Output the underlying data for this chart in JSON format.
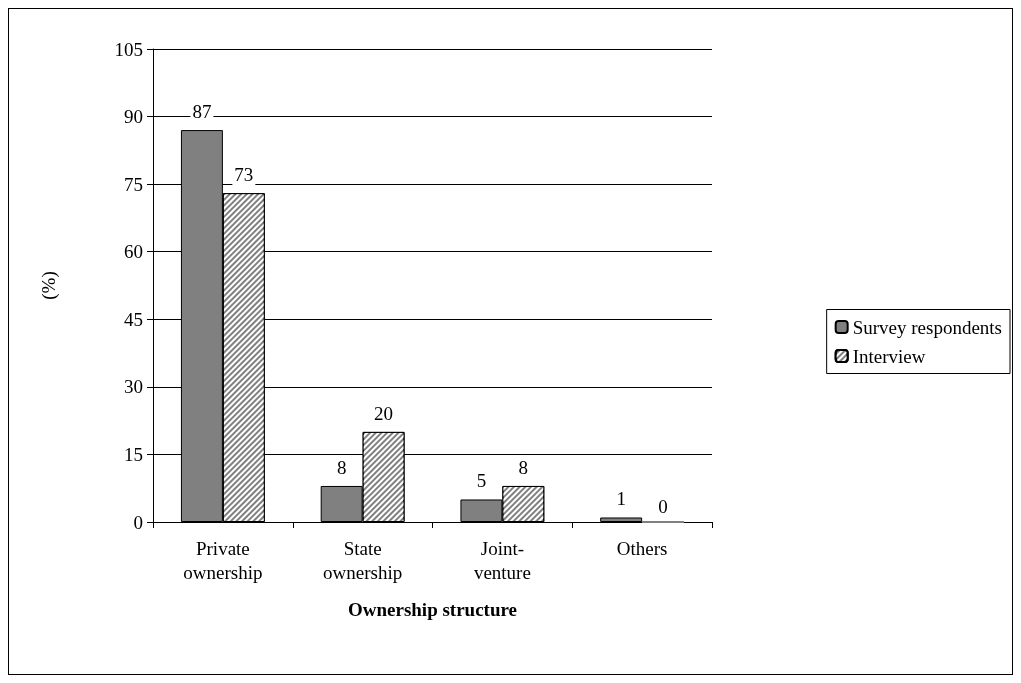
{
  "chart_data": {
    "type": "bar",
    "xlabel": "Ownership structure",
    "ylabel": "(%)",
    "categories": [
      "Private ownership",
      "State ownership",
      "Joint-venture",
      "Others"
    ],
    "series": [
      {
        "name": "Survey respondents",
        "color": "#808080",
        "values": [
          87,
          8,
          5,
          1
        ]
      },
      {
        "name": "Interview",
        "color": "#808080",
        "values": [
          73,
          20,
          8,
          0
        ]
      }
    ],
    "ylim": [
      0,
      105
    ],
    "yticks": [
      0,
      15,
      30,
      45,
      60,
      75,
      90,
      105
    ],
    "grid": "y",
    "legend": "right",
    "data_labels": true
  }
}
